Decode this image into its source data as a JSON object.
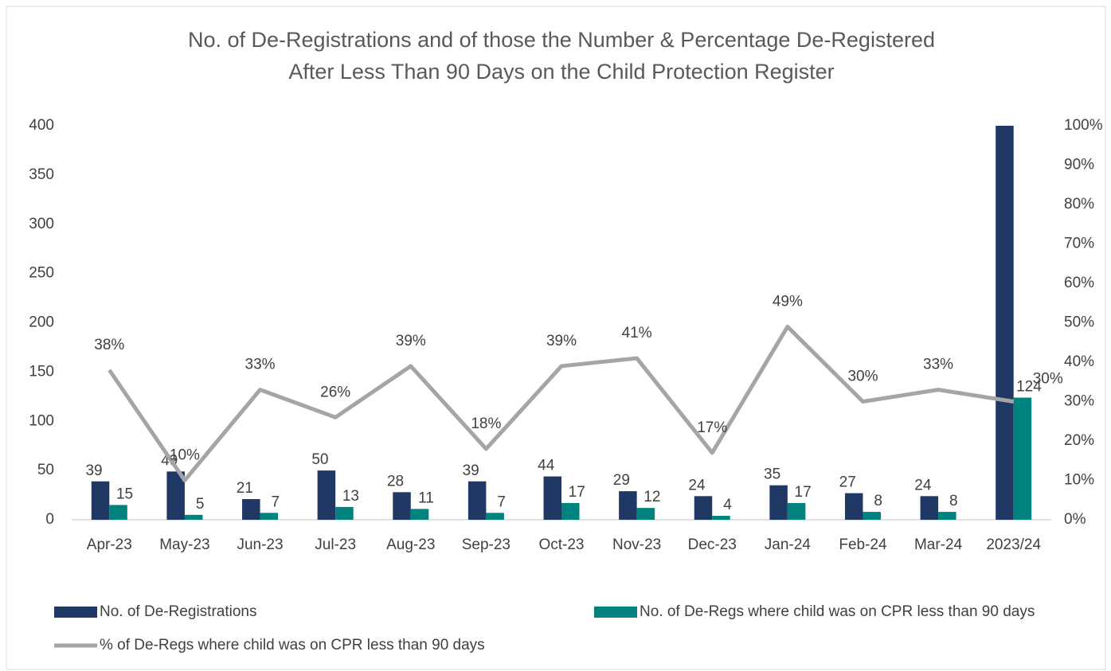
{
  "chart_data": {
    "type": "bar-line",
    "title": [
      "No. of De-Registrations and of those the Number & Percentage De-Registered",
      "After Less Than 90 Days on the Child Protection Register"
    ],
    "categories": [
      "Apr-23",
      "May-23",
      "Jun-23",
      "Jul-23",
      "Aug-23",
      "Sep-23",
      "Oct-23",
      "Nov-23",
      "Dec-23",
      "Jan-24",
      "Feb-24",
      "Mar-24",
      "2023/24"
    ],
    "series": [
      {
        "name": "No. of De-Registrations",
        "type": "bar",
        "color": "#1f3864",
        "values": [
          39,
          49,
          21,
          50,
          28,
          39,
          44,
          29,
          24,
          35,
          27,
          24,
          409
        ]
      },
      {
        "name": "No. of De-Regs where child was on CPR less than 90 days",
        "type": "bar",
        "color": "#00827f",
        "values": [
          15,
          5,
          7,
          13,
          11,
          7,
          17,
          12,
          4,
          17,
          8,
          8,
          124
        ]
      },
      {
        "name": "% of De-Regs where child was on CPR less than 90 days",
        "type": "line",
        "axis": "y2",
        "color": "#a5a5a5",
        "values": [
          38,
          10,
          33,
          26,
          39,
          18,
          39,
          41,
          17,
          49,
          30,
          33,
          30
        ],
        "value_labels": [
          "38%",
          "10%",
          "33%",
          "26%",
          "39%",
          "18%",
          "39%",
          "41%",
          "17%",
          "49%",
          "30%",
          "33%",
          "30%"
        ]
      }
    ],
    "ylim": [
      0,
      400
    ],
    "yticks": [
      0,
      50,
      100,
      150,
      200,
      250,
      300,
      350,
      400
    ],
    "y2lim": [
      0,
      100
    ],
    "y2ticks": [
      {
        "value": 0,
        "label": "0%"
      },
      {
        "value": 10,
        "label": "10%"
      },
      {
        "value": 20,
        "label": "20%"
      },
      {
        "value": 30,
        "label": "30%"
      },
      {
        "value": 40,
        "label": "40%"
      },
      {
        "value": 50,
        "label": "50%"
      },
      {
        "value": 60,
        "label": "60%"
      },
      {
        "value": 70,
        "label": "70%"
      },
      {
        "value": 80,
        "label": "80%"
      },
      {
        "value": 90,
        "label": "90%"
      },
      {
        "value": 100,
        "label": "100%"
      }
    ],
    "grid": false,
    "legend": "bottom"
  }
}
